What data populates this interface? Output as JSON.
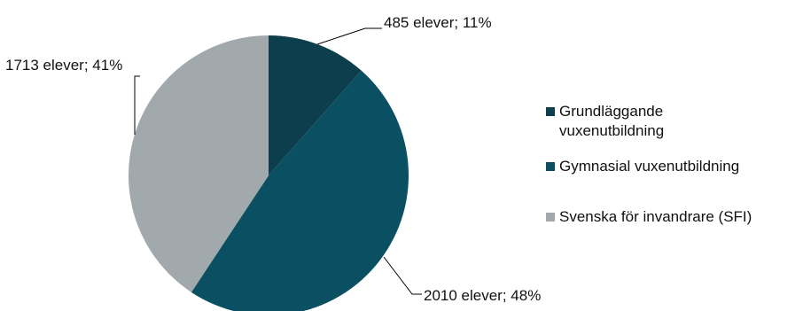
{
  "chart_data": {
    "type": "pie",
    "categories": [
      "Grundläggande vuxenutbildning",
      "Gymnasial vuxenutbildning",
      "Svenska för invandrare (SFI)"
    ],
    "values": [
      485,
      2010,
      1713
    ],
    "percentages": [
      11,
      48,
      41
    ],
    "data_labels": [
      "485 elever; 11%",
      "2010 elever; 48%",
      "1713 elever; 41%"
    ],
    "legend": {
      "position": "right",
      "entries": [
        [
          "Grundläggande",
          "vuxenutbildning"
        ],
        [
          "Gymnasial vuxenutbildning"
        ],
        [
          "Svenska för invandrare (SFI)"
        ]
      ]
    },
    "colors": [
      "#0d3e4d",
      "#0b5062",
      "#a2a9ad"
    ]
  }
}
